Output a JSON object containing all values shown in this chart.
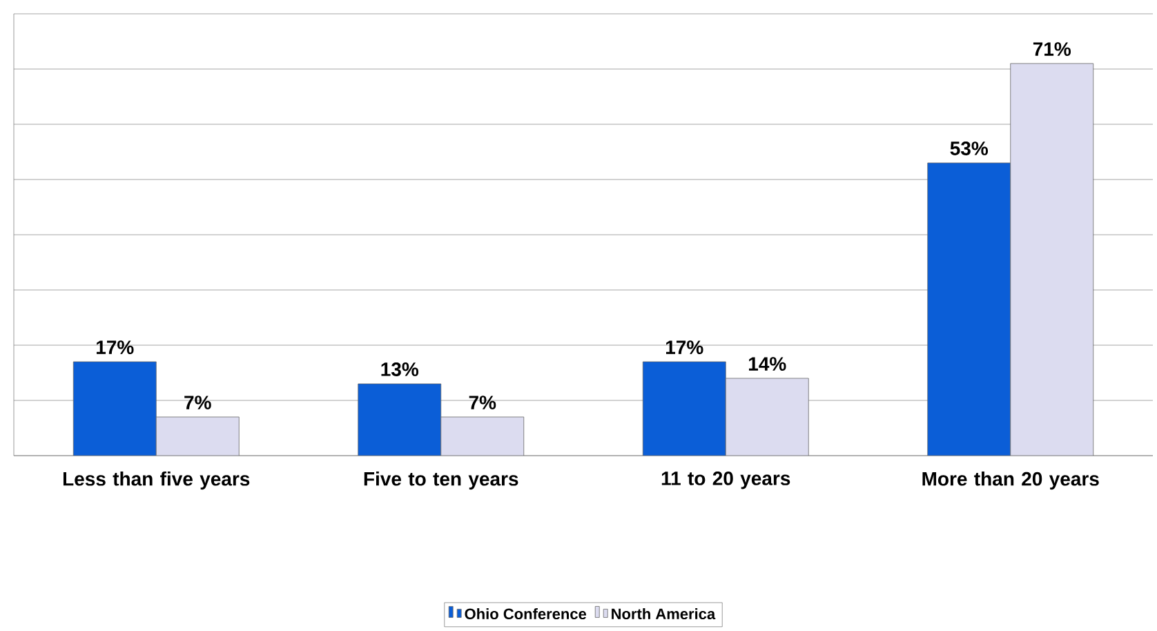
{
  "chart_data": {
    "type": "bar",
    "categories": [
      "Less than five years",
      "Five to ten years",
      "11 to 20 years",
      "More than 20 years"
    ],
    "series": [
      {
        "name": "Ohio Conference",
        "color": "#0b5ed7",
        "values": [
          17,
          13,
          17,
          53
        ],
        "value_labels": [
          "17%",
          "13%",
          "17%",
          "53%"
        ]
      },
      {
        "name": "North America",
        "color": "#dcdcf0",
        "values": [
          7,
          7,
          14,
          71
        ],
        "value_labels": [
          "7%",
          "7%",
          "14%",
          "71%"
        ]
      }
    ],
    "ylim": [
      0,
      80
    ],
    "yticks": [
      {
        "value": 0,
        "label": null
      },
      {
        "value": 10,
        "label": null
      },
      {
        "value": 20,
        "label": null
      },
      {
        "value": 30,
        "label": null
      },
      {
        "value": 40,
        "label": null
      },
      {
        "value": 50,
        "label": null
      },
      {
        "value": 60,
        "label": null
      },
      {
        "value": 70,
        "label": null
      },
      {
        "value": 80,
        "label": null
      }
    ],
    "grid": "y",
    "legend": "bottom",
    "tick_labels": "x"
  }
}
